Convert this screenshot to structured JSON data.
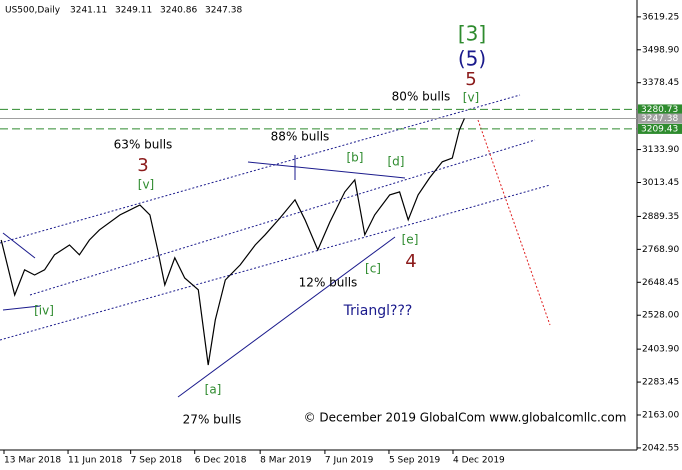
{
  "chart_data": {
    "type": "line",
    "symbol": "US500,Daily",
    "ohlc": [
      3241.11,
      3249.11,
      3240.86,
      3247.38
    ],
    "x": [
      "2018-03-09",
      "2018-03-28",
      "2018-04-11",
      "2018-04-25",
      "2018-05-09",
      "2018-05-23",
      "2018-06-13",
      "2018-06-27",
      "2018-07-11",
      "2018-07-25",
      "2018-08-23",
      "2018-09-20",
      "2018-10-04",
      "2018-10-15",
      "2018-10-25",
      "2018-11-08",
      "2018-11-22",
      "2018-12-11",
      "2018-12-25",
      "2019-01-04",
      "2019-01-18",
      "2019-02-08",
      "2019-03-01",
      "2019-03-15",
      "2019-04-05",
      "2019-04-26",
      "2019-05-10",
      "2019-05-28",
      "2019-06-14",
      "2019-07-05",
      "2019-07-19",
      "2019-08-02",
      "2019-08-16",
      "2019-09-06",
      "2019-09-20",
      "2019-10-02",
      "2019-10-16",
      "2019-11-01",
      "2019-11-19",
      "2019-12-03",
      "2019-12-13",
      "2019-12-20"
    ],
    "series": [
      {
        "color": "#000000",
        "values": [
          2803,
          2602,
          2694,
          2675,
          2694,
          2749,
          2785,
          2749,
          2803,
          2840,
          2895,
          2931,
          2895,
          2767,
          2639,
          2738,
          2664,
          2621,
          2346,
          2511,
          2657,
          2712,
          2785,
          2822,
          2884,
          2950,
          2877,
          2767,
          2869,
          2979,
          3023,
          2822,
          2895,
          2968,
          2979,
          2877,
          2968,
          3030,
          3089,
          3103,
          3206,
          3247.38
        ]
      }
    ],
    "ylim": [
      2035,
      3681
    ],
    "yticks": [
      3619.25,
      {
        "value": 3498.9,
        "label": "3498.90"
      },
      3378.45,
      {
        "value": 3133.9,
        "label": "3133.90"
      },
      3013.45,
      2889.35,
      {
        "value": 2768.9,
        "label": "2768.90"
      },
      2648.45,
      {
        "value": 2528,
        "label": "2528.00"
      },
      {
        "value": 2403.9,
        "label": "2403.90"
      },
      2283.45,
      {
        "value": 2163,
        "label": "2163.00"
      },
      2042.55
    ],
    "xticks": [
      "13 Mar 2018",
      "11 Jun 2018",
      "7 Sep 2018",
      "6 Dec 2018",
      "8 Mar 2019",
      "7 Jun 2019",
      "5 Sep 2019",
      "4 Dec 2019"
    ],
    "levels": [
      {
        "value": 3280.73,
        "color": "#2e8b2e"
      },
      {
        "value": 3247.38,
        "color": "#a0a0a0"
      },
      {
        "value": 3209.43,
        "color": "#2e8b2e"
      }
    ],
    "annotations": [
      {
        "text": "[3]",
        "color": "#2e8b2e"
      },
      {
        "text": "(5)",
        "color": "#1a1a8c"
      },
      {
        "text": "5",
        "color": "#8b1a1a"
      },
      {
        "text": "[v]",
        "color": "#2e8b2e"
      },
      {
        "text": "80% bulls",
        "color": "#000000"
      },
      {
        "text": "88% bulls",
        "color": "#000000"
      },
      {
        "text": "63% bulls",
        "color": "#000000"
      },
      {
        "text": "3",
        "color": "#8b1a1a"
      },
      {
        "text": "[v]",
        "color": "#2e8b2e"
      },
      {
        "text": "[b]",
        "color": "#2e8b2e"
      },
      {
        "text": "[d]",
        "color": "#2e8b2e"
      },
      {
        "text": "[iv]",
        "color": "#2e8b2e"
      },
      {
        "text": "[e]",
        "color": "#2e8b2e"
      },
      {
        "text": "4",
        "color": "#8b1a1a"
      },
      {
        "text": "[c]",
        "color": "#2e8b2e"
      },
      {
        "text": "12% bulls",
        "color": "#000000"
      },
      {
        "text": "Triangl???",
        "color": "#1a1a8c"
      },
      {
        "text": "[a]",
        "color": "#2e8b2e"
      },
      {
        "text": "27% bulls",
        "color": "#000000"
      },
      {
        "text": "© December 2019 GlobalCom www.globalcomllc.com",
        "color": "#000000"
      }
    ]
  }
}
